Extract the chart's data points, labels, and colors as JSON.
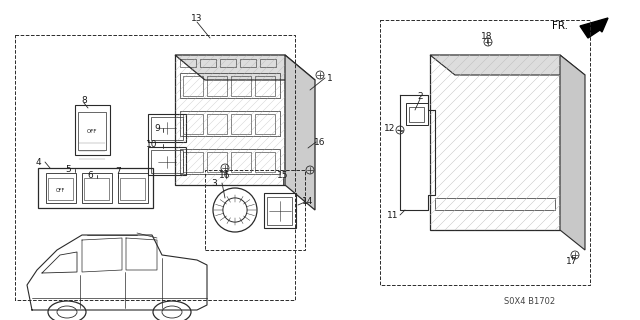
{
  "bg_color": "#ffffff",
  "fig_width": 6.4,
  "fig_height": 3.2,
  "dpi": 100,
  "watermark": "S0X4 B1702",
  "fr_label": "FR.",
  "line_color": "#2a2a2a",
  "text_color": "#1a1a1a",
  "font_size_labels": 6.5,
  "font_size_watermark": 6.0,
  "font_size_fr": 7.5
}
